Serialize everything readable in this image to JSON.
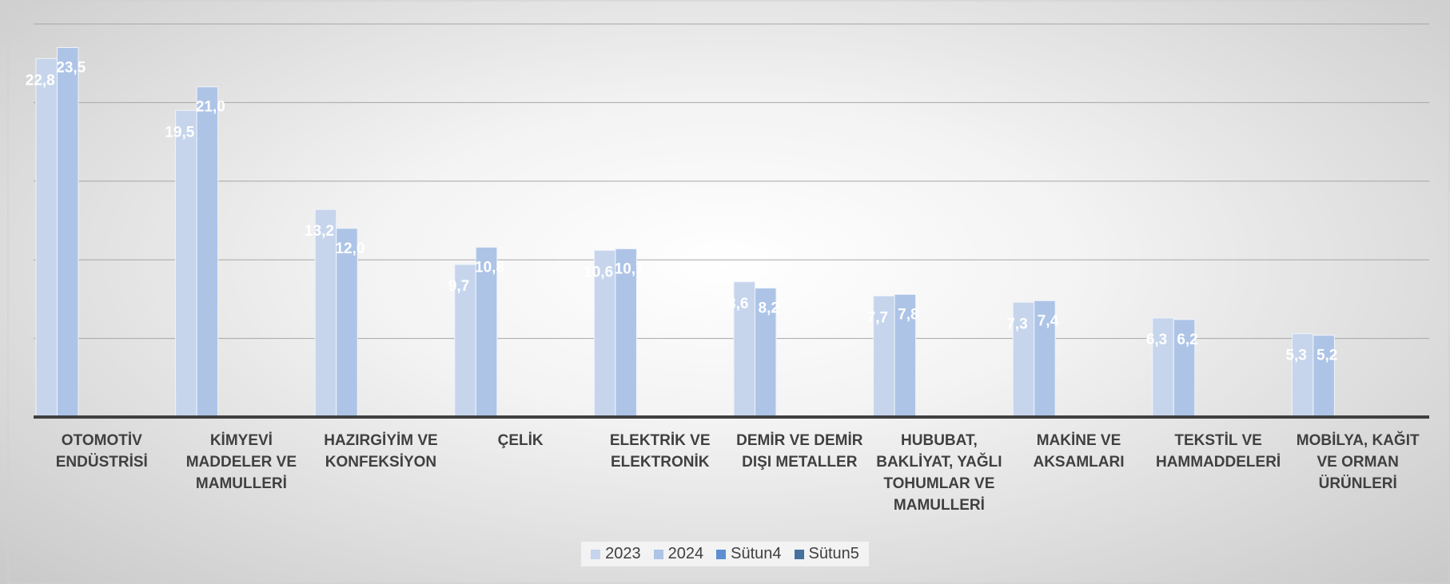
{
  "chart_data": {
    "type": "bar",
    "categories": [
      "OTOMOTİV ENDÜSTRİSİ",
      "KİMYEVİ MADDELER VE MAMULLERİ",
      "HAZIRGİYİM VE KONFEKSİYON",
      "ÇELİK",
      "ELEKTRİK VE ELEKTRONİK",
      "DEMİR VE DEMİR DIŞI METALLER",
      "HUBUBAT, BAKLİYAT, YAĞLI TOHUMLAR VE MAMULLERİ",
      "MAKİNE VE AKSAMLARI",
      "TEKSTİL VE HAMMADDELERİ",
      "MOBİLYA, KAĞIT VE ORMAN ÜRÜNLERİ"
    ],
    "series": [
      {
        "name": "2023",
        "color": "#c6d5ec",
        "values": [
          22.8,
          19.5,
          13.2,
          9.7,
          10.6,
          8.6,
          7.7,
          7.3,
          6.3,
          5.3
        ],
        "value_labels": [
          "22,8",
          "19,5",
          "13,2",
          "9,7",
          "10,6",
          "8,6",
          "7,7",
          "7,3",
          "6,3",
          "5,3"
        ]
      },
      {
        "name": "2024",
        "color": "#adc4e7",
        "values": [
          23.5,
          21.0,
          12.0,
          10.8,
          10.7,
          8.2,
          7.8,
          7.4,
          6.2,
          5.2
        ],
        "value_labels": [
          "23,5",
          "21,0",
          "12,0",
          "10,8",
          "10,7",
          "8,2",
          "7,8",
          "7,4",
          "6,2",
          "5,2"
        ]
      },
      {
        "name": "Sütun4",
        "color": "#5b8fd0",
        "values": [
          null,
          null,
          null,
          null,
          null,
          null,
          null,
          null,
          null,
          null
        ]
      },
      {
        "name": "Sütun5",
        "color": "#46719f",
        "values": [
          null,
          null,
          null,
          null,
          null,
          null,
          null,
          null,
          null,
          null
        ]
      }
    ],
    "ylim": [
      0,
      25
    ],
    "yticks": [
      0,
      5,
      10,
      15,
      20,
      25
    ],
    "grid": true,
    "legend": "bottom"
  }
}
